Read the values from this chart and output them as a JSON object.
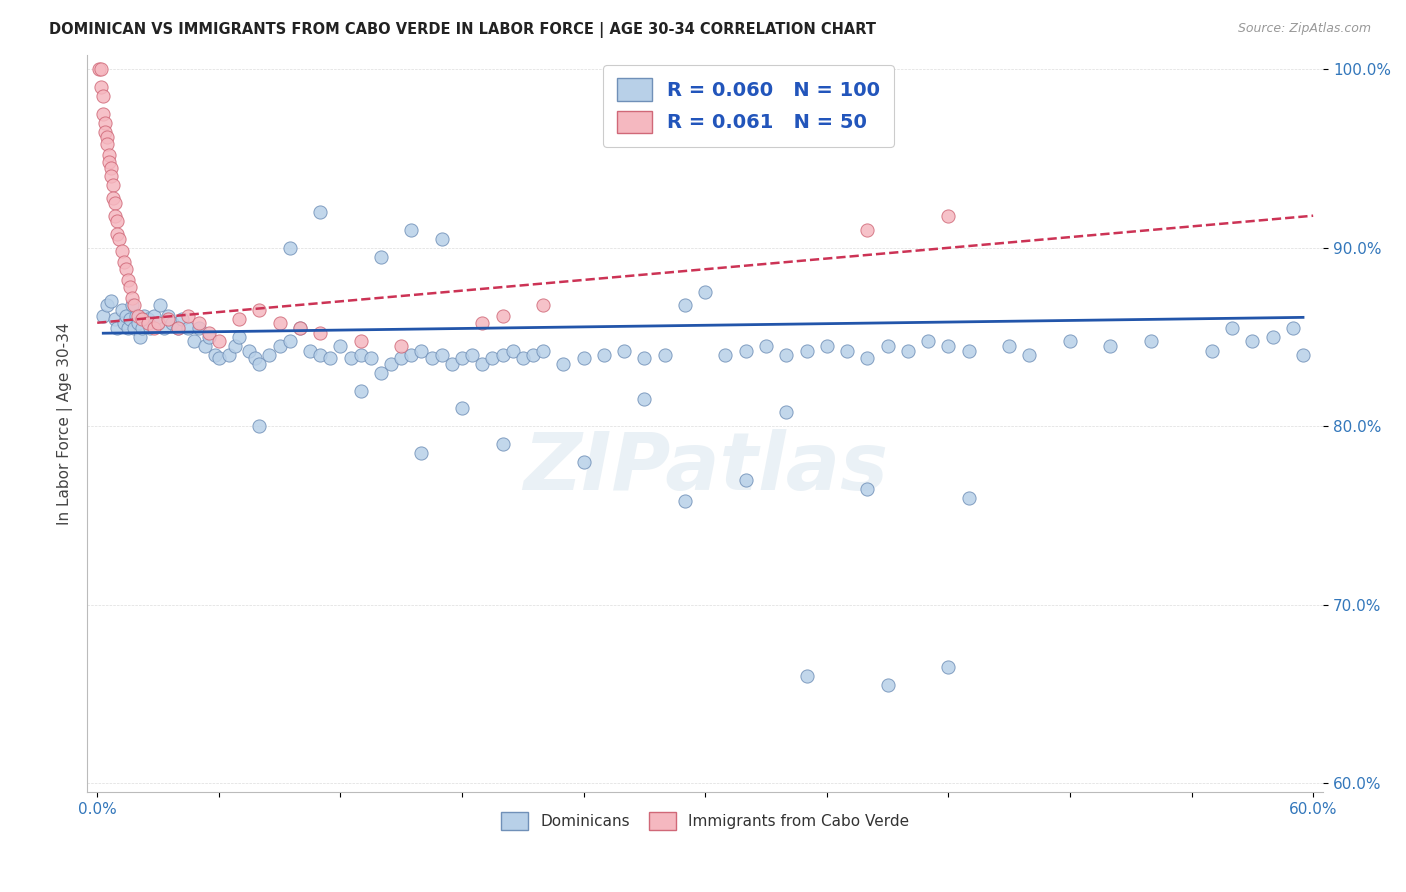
{
  "title": "DOMINICAN VS IMMIGRANTS FROM CABO VERDE IN LABOR FORCE | AGE 30-34 CORRELATION CHART",
  "source": "Source: ZipAtlas.com",
  "ylabel": "In Labor Force | Age 30-34",
  "xlim": [
    -0.005,
    0.605
  ],
  "ylim": [
    0.595,
    1.008
  ],
  "yticks": [
    0.6,
    0.7,
    0.8,
    0.9,
    1.0
  ],
  "ytick_labels": [
    "60.0%",
    "70.0%",
    "80.0%",
    "90.0%",
    "100.0%"
  ],
  "xticks": [
    0.0,
    0.06,
    0.12,
    0.18,
    0.24,
    0.3,
    0.36,
    0.42,
    0.48,
    0.54,
    0.6
  ],
  "xtick_labels": [
    "0.0%",
    "",
    "",
    "",
    "",
    "",
    "",
    "",
    "",
    "",
    "60.0%"
  ],
  "dominican_color": "#b8d0e8",
  "cabo_verde_color": "#f5b8c0",
  "dominican_edge": "#7090b8",
  "cabo_verde_edge": "#d06878",
  "trend_dominican_color": "#2255aa",
  "trend_cabo_verde_color": "#cc3355",
  "R_dominican": 0.06,
  "N_dominican": 100,
  "R_cabo_verde": 0.061,
  "N_cabo_verde": 50,
  "dominican_x": [
    0.003,
    0.005,
    0.007,
    0.009,
    0.01,
    0.012,
    0.013,
    0.014,
    0.015,
    0.016,
    0.017,
    0.018,
    0.019,
    0.02,
    0.021,
    0.022,
    0.023,
    0.025,
    0.026,
    0.028,
    0.03,
    0.031,
    0.033,
    0.035,
    0.037,
    0.04,
    0.042,
    0.045,
    0.048,
    0.05,
    0.053,
    0.055,
    0.058,
    0.06,
    0.065,
    0.068,
    0.07,
    0.075,
    0.078,
    0.08,
    0.085,
    0.09,
    0.095,
    0.1,
    0.105,
    0.11,
    0.115,
    0.12,
    0.125,
    0.13,
    0.135,
    0.14,
    0.145,
    0.15,
    0.155,
    0.16,
    0.165,
    0.17,
    0.175,
    0.18,
    0.185,
    0.19,
    0.195,
    0.2,
    0.205,
    0.21,
    0.215,
    0.22,
    0.23,
    0.24,
    0.25,
    0.26,
    0.27,
    0.28,
    0.29,
    0.3,
    0.31,
    0.32,
    0.33,
    0.34,
    0.35,
    0.36,
    0.37,
    0.38,
    0.39,
    0.4,
    0.41,
    0.42,
    0.43,
    0.45,
    0.46,
    0.48,
    0.5,
    0.52,
    0.55,
    0.56,
    0.57,
    0.58,
    0.59,
    0.595
  ],
  "dominican_y": [
    0.862,
    0.868,
    0.87,
    0.86,
    0.855,
    0.865,
    0.858,
    0.862,
    0.855,
    0.86,
    0.868,
    0.855,
    0.862,
    0.858,
    0.85,
    0.855,
    0.862,
    0.86,
    0.855,
    0.862,
    0.858,
    0.868,
    0.855,
    0.862,
    0.858,
    0.855,
    0.86,
    0.855,
    0.848,
    0.855,
    0.845,
    0.85,
    0.84,
    0.838,
    0.84,
    0.845,
    0.85,
    0.842,
    0.838,
    0.835,
    0.84,
    0.845,
    0.848,
    0.855,
    0.842,
    0.84,
    0.838,
    0.845,
    0.838,
    0.84,
    0.838,
    0.83,
    0.835,
    0.838,
    0.84,
    0.842,
    0.838,
    0.84,
    0.835,
    0.838,
    0.84,
    0.835,
    0.838,
    0.84,
    0.842,
    0.838,
    0.84,
    0.842,
    0.835,
    0.838,
    0.84,
    0.842,
    0.838,
    0.84,
    0.868,
    0.875,
    0.84,
    0.842,
    0.845,
    0.84,
    0.842,
    0.845,
    0.842,
    0.838,
    0.845,
    0.842,
    0.848,
    0.845,
    0.842,
    0.845,
    0.84,
    0.848,
    0.845,
    0.848,
    0.842,
    0.855,
    0.848,
    0.85,
    0.855,
    0.84
  ],
  "dominican_y_extra": [
    0.8,
    0.785,
    0.79,
    0.78,
    0.758,
    0.77,
    0.765,
    0.76,
    0.82,
    0.81,
    0.815,
    0.808,
    0.9,
    0.895,
    0.92,
    0.91,
    0.905,
    0.66,
    0.655,
    0.665
  ],
  "dominican_x_extra": [
    0.08,
    0.16,
    0.2,
    0.24,
    0.29,
    0.32,
    0.38,
    0.43,
    0.13,
    0.18,
    0.27,
    0.34,
    0.095,
    0.14,
    0.11,
    0.155,
    0.17,
    0.35,
    0.39,
    0.42
  ],
  "cabo_verde_x": [
    0.001,
    0.002,
    0.002,
    0.003,
    0.003,
    0.004,
    0.004,
    0.005,
    0.005,
    0.006,
    0.006,
    0.007,
    0.007,
    0.008,
    0.008,
    0.009,
    0.009,
    0.01,
    0.01,
    0.011,
    0.012,
    0.013,
    0.014,
    0.015,
    0.016,
    0.017,
    0.018,
    0.02,
    0.022,
    0.025,
    0.028,
    0.03,
    0.035,
    0.04,
    0.045,
    0.05,
    0.055,
    0.06,
    0.07,
    0.08,
    0.09,
    0.1,
    0.11,
    0.13,
    0.15,
    0.19,
    0.2,
    0.22,
    0.38,
    0.42
  ],
  "cabo_verde_y": [
    1.0,
    1.0,
    0.99,
    0.985,
    0.975,
    0.97,
    0.965,
    0.962,
    0.958,
    0.952,
    0.948,
    0.945,
    0.94,
    0.935,
    0.928,
    0.925,
    0.918,
    0.915,
    0.908,
    0.905,
    0.898,
    0.892,
    0.888,
    0.882,
    0.878,
    0.872,
    0.868,
    0.862,
    0.86,
    0.858,
    0.855,
    0.858,
    0.86,
    0.855,
    0.862,
    0.858,
    0.852,
    0.848,
    0.86,
    0.865,
    0.858,
    0.855,
    0.852,
    0.848,
    0.845,
    0.858,
    0.862,
    0.868,
    0.91,
    0.918
  ],
  "watermark": "ZIPatlas",
  "background_color": "#ffffff",
  "grid_color": "#dddddd"
}
